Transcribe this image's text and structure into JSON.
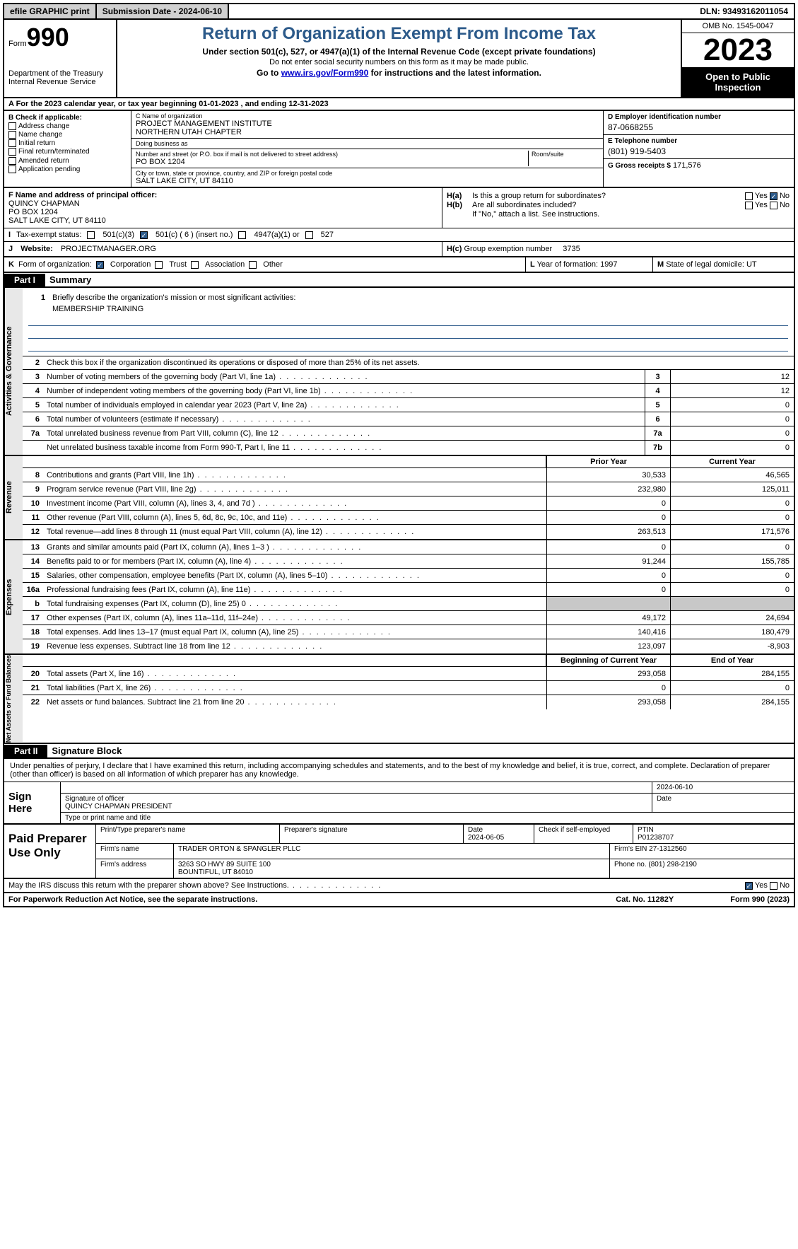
{
  "topbar": {
    "efile": "efile GRAPHIC print",
    "sub": "Submission Date - 2024-06-10",
    "dln": "DLN: 93493162011054"
  },
  "header": {
    "form_word": "Form",
    "form_num": "990",
    "title": "Return of Organization Exempt From Income Tax",
    "sub1": "Under section 501(c), 527, or 4947(a)(1) of the Internal Revenue Code (except private foundations)",
    "sub2": "Do not enter social security numbers on this form as it may be made public.",
    "sub3_a": "Go to ",
    "sub3_link": "www.irs.gov/Form990",
    "sub3_b": " for instructions and the latest information.",
    "dept": "Department of the Treasury\nInternal Revenue Service",
    "omb": "OMB No. 1545-0047",
    "year": "2023",
    "open": "Open to Public Inspection"
  },
  "rowA": "A For the 2023 calendar year, or tax year beginning 01-01-2023   , and ending 12-31-2023",
  "colB": {
    "hdr": "B Check if applicable:",
    "opts": [
      "Address change",
      "Name change",
      "Initial return",
      "Final return/terminated",
      "Amended return",
      "Application pending"
    ]
  },
  "colC": {
    "name_lbl": "C Name of organization",
    "name": "PROJECT MANAGEMENT INSTITUTE\nNORTHERN UTAH CHAPTER",
    "dba_lbl": "Doing business as",
    "dba": "",
    "addr_lbl": "Number and street (or P.O. box if mail is not delivered to street address)",
    "room_lbl": "Room/suite",
    "addr": "PO BOX 1204",
    "city_lbl": "City or town, state or province, country, and ZIP or foreign postal code",
    "city": "SALT LAKE CITY, UT  84110"
  },
  "colD": {
    "ein_lbl": "D Employer identification number",
    "ein": "87-0668255",
    "tel_lbl": "E Telephone number",
    "tel": "(801) 919-5403",
    "gross_lbl": "G Gross receipts $",
    "gross": "171,576"
  },
  "colF": {
    "lbl": "F  Name and address of principal officer:",
    "name": "QUINCY CHAPMAN",
    "addr1": "PO BOX 1204",
    "addr2": "SALT LAKE CITY, UT  84110"
  },
  "colH": {
    "a_lbl": "H(a)",
    "a_txt": "Is this a group return for subordinates?",
    "b_lbl": "H(b)",
    "b_txt": "Are all subordinates included?",
    "note": "If \"No,\" attach a list. See instructions.",
    "c_lbl": "H(c)",
    "c_txt": "Group exemption number",
    "c_val": "3735",
    "yes": "Yes",
    "no": "No"
  },
  "rowI": {
    "lbl": "I",
    "txt": "Tax-exempt status:",
    "o1": "501(c)(3)",
    "o2": "501(c) ( 6 ) (insert no.)",
    "o3": "4947(a)(1) or",
    "o4": "527"
  },
  "rowJ": {
    "lbl": "J",
    "txt": "Website:",
    "val": "PROJECTMANAGER.ORG"
  },
  "rowK": {
    "lbl": "K",
    "txt": "Form of organization:",
    "opts": [
      "Corporation",
      "Trust",
      "Association",
      "Other"
    ]
  },
  "rowL": {
    "lbl": "L",
    "txt": "Year of formation: 1997"
  },
  "rowM": {
    "lbl": "M",
    "txt": "State of legal domicile: UT"
  },
  "part1": {
    "hdr": "Part I",
    "title": "Summary"
  },
  "gov": {
    "l1": "Briefly describe the organization's mission or most significant activities:",
    "l1v": "MEMBERSHIP TRAINING",
    "l2": "Check this box        if the organization discontinued its operations or disposed of more than 25% of its net assets.",
    "rows": [
      {
        "n": "3",
        "t": "Number of voting members of the governing body (Part VI, line 1a)",
        "box": "3",
        "v": "12"
      },
      {
        "n": "4",
        "t": "Number of independent voting members of the governing body (Part VI, line 1b)",
        "box": "4",
        "v": "12"
      },
      {
        "n": "5",
        "t": "Total number of individuals employed in calendar year 2023 (Part V, line 2a)",
        "box": "5",
        "v": "0"
      },
      {
        "n": "6",
        "t": "Total number of volunteers (estimate if necessary)",
        "box": "6",
        "v": "0"
      },
      {
        "n": "7a",
        "t": "Total unrelated business revenue from Part VIII, column (C), line 12",
        "box": "7a",
        "v": "0"
      },
      {
        "n": "",
        "t": "Net unrelated business taxable income from Form 990-T, Part I, line 11",
        "box": "7b",
        "v": "0"
      }
    ]
  },
  "rev": {
    "hdr_prior": "Prior Year",
    "hdr_curr": "Current Year",
    "rows": [
      {
        "n": "8",
        "t": "Contributions and grants (Part VIII, line 1h)",
        "p": "30,533",
        "c": "46,565"
      },
      {
        "n": "9",
        "t": "Program service revenue (Part VIII, line 2g)",
        "p": "232,980",
        "c": "125,011"
      },
      {
        "n": "10",
        "t": "Investment income (Part VIII, column (A), lines 3, 4, and 7d )",
        "p": "0",
        "c": "0"
      },
      {
        "n": "11",
        "t": "Other revenue (Part VIII, column (A), lines 5, 6d, 8c, 9c, 10c, and 11e)",
        "p": "0",
        "c": "0"
      },
      {
        "n": "12",
        "t": "Total revenue—add lines 8 through 11 (must equal Part VIII, column (A), line 12)",
        "p": "263,513",
        "c": "171,576"
      }
    ]
  },
  "exp": {
    "rows": [
      {
        "n": "13",
        "t": "Grants and similar amounts paid (Part IX, column (A), lines 1–3 )",
        "p": "0",
        "c": "0"
      },
      {
        "n": "14",
        "t": "Benefits paid to or for members (Part IX, column (A), line 4)",
        "p": "91,244",
        "c": "155,785"
      },
      {
        "n": "15",
        "t": "Salaries, other compensation, employee benefits (Part IX, column (A), lines 5–10)",
        "p": "0",
        "c": "0"
      },
      {
        "n": "16a",
        "t": "Professional fundraising fees (Part IX, column (A), line 11e)",
        "p": "0",
        "c": "0"
      },
      {
        "n": "b",
        "t": "Total fundraising expenses (Part IX, column (D), line 25) 0",
        "p": "",
        "c": "",
        "shade": true
      },
      {
        "n": "17",
        "t": "Other expenses (Part IX, column (A), lines 11a–11d, 11f–24e)",
        "p": "49,172",
        "c": "24,694"
      },
      {
        "n": "18",
        "t": "Total expenses. Add lines 13–17 (must equal Part IX, column (A), line 25)",
        "p": "140,416",
        "c": "180,479"
      },
      {
        "n": "19",
        "t": "Revenue less expenses. Subtract line 18 from line 12",
        "p": "123,097",
        "c": "-8,903"
      }
    ]
  },
  "net": {
    "hdr_begin": "Beginning of Current Year",
    "hdr_end": "End of Year",
    "rows": [
      {
        "n": "20",
        "t": "Total assets (Part X, line 16)",
        "p": "293,058",
        "c": "284,155"
      },
      {
        "n": "21",
        "t": "Total liabilities (Part X, line 26)",
        "p": "0",
        "c": "0"
      },
      {
        "n": "22",
        "t": "Net assets or fund balances. Subtract line 21 from line 20",
        "p": "293,058",
        "c": "284,155"
      }
    ]
  },
  "part2": {
    "hdr": "Part II",
    "title": "Signature Block"
  },
  "sig": {
    "intro": "Under penalties of perjury, I declare that I have examined this return, including accompanying schedules and statements, and to the best of my knowledge and belief, it is true, correct, and complete. Declaration of preparer (other than officer) is based on all information of which preparer has any knowledge.",
    "here": "Sign Here",
    "officer_lbl": "Signature of officer",
    "date_lbl": "Date",
    "date": "2024-06-10",
    "officer": "QUINCY CHAPMAN  PRESIDENT",
    "type_lbl": "Type or print name and title"
  },
  "prep": {
    "hdr": "Paid Preparer Use Only",
    "name_lbl": "Print/Type preparer's name",
    "sig_lbl": "Preparer's signature",
    "date_lbl": "Date",
    "date": "2024-06-05",
    "self_lbl": "Check        if self-employed",
    "ptin_lbl": "PTIN",
    "ptin": "P01238707",
    "firm_name_lbl": "Firm's name",
    "firm_name": "TRADER ORTON & SPANGLER PLLC",
    "firm_ein_lbl": "Firm's EIN",
    "firm_ein": "27-1312560",
    "firm_addr_lbl": "Firm's address",
    "firm_addr1": "3263 SO HWY 89 SUITE 100",
    "firm_addr2": "BOUNTIFUL, UT  84010",
    "phone_lbl": "Phone no.",
    "phone": "(801) 298-2190"
  },
  "discuss": {
    "txt": "May the IRS discuss this return with the preparer shown above? See Instructions.",
    "yes": "Yes",
    "no": "No"
  },
  "footer": {
    "left": "For Paperwork Reduction Act Notice, see the separate instructions.",
    "mid": "Cat. No. 11282Y",
    "right": "Form 990 (2023)"
  },
  "vtabs": {
    "gov": "Activities & Governance",
    "rev": "Revenue",
    "exp": "Expenses",
    "net": "Net Assets or Fund Balances"
  }
}
